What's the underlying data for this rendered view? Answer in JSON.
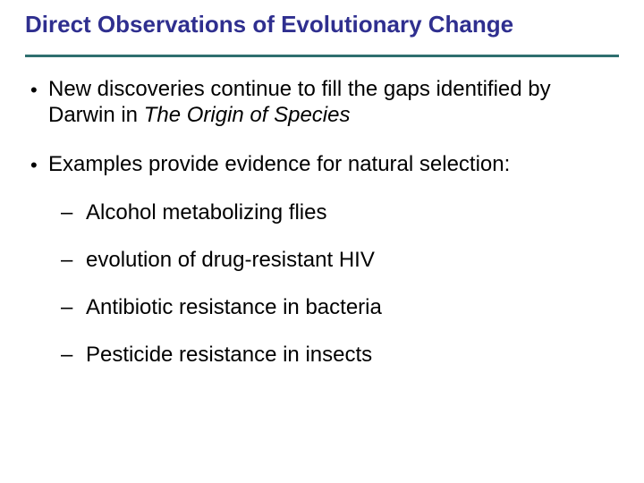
{
  "slide": {
    "title": "Direct Observations of Evolutionary Change",
    "title_color": "#2f2f8f",
    "rule_color": "#2f6f6f",
    "bullets": [
      {
        "pre": "New discoveries continue to fill the gaps identified by Darwin in ",
        "italic": "The Origin of Species",
        "post": ""
      },
      {
        "pre": "Examples provide evidence for natural selection:",
        "italic": "",
        "post": ""
      }
    ],
    "subbullets": [
      "Alcohol metabolizing flies",
      "evolution of drug-resistant HIV",
      "Antibiotic resistance in bacteria",
      "Pesticide resistance in insects"
    ]
  }
}
